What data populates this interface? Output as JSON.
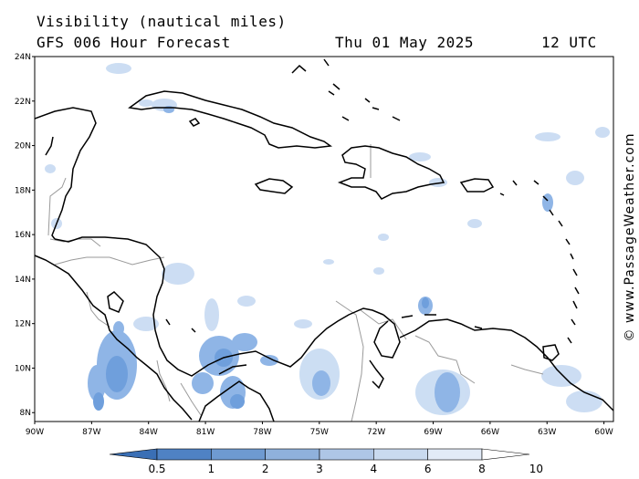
{
  "header": {
    "title": "Visibility (nautical miles)",
    "subtitle": "GFS 006 Hour Forecast",
    "date": "Thu 01 May 2025",
    "time": "12 UTC"
  },
  "credit": "© www.PassageWeather.com",
  "axes": {
    "lat_labels": [
      "24N",
      "22N",
      "20N",
      "18N",
      "16N",
      "14N",
      "12N",
      "10N",
      "8N"
    ],
    "lat_values": [
      24,
      22,
      20,
      18,
      16,
      14,
      12,
      10,
      8
    ],
    "lon_labels": [
      "90W",
      "87W",
      "84W",
      "81W",
      "78W",
      "75W",
      "72W",
      "69W",
      "66W",
      "63W",
      "60W"
    ],
    "lon_values": [
      -90,
      -87,
      -84,
      -81,
      -78,
      -75,
      -72,
      -69,
      -66,
      -63,
      -60
    ],
    "lat_range": [
      7.6,
      24
    ],
    "lon_range": [
      -90,
      -59.5
    ]
  },
  "colorbar": {
    "labels": [
      "0.5",
      "1",
      "2",
      "3",
      "4",
      "6",
      "8",
      "10"
    ],
    "colors": [
      "#3a6fb5",
      "#4f82c4",
      "#6e9ad1",
      "#8fb1dc",
      "#aec6e6",
      "#c9daef",
      "#e2ebf7",
      "#ffffff"
    ]
  },
  "colors": {
    "frame": "#000000",
    "coast": "#000000",
    "border": "#9a9a9a",
    "low_vis": "#6f9fdc",
    "haze": "#c7daf2"
  }
}
